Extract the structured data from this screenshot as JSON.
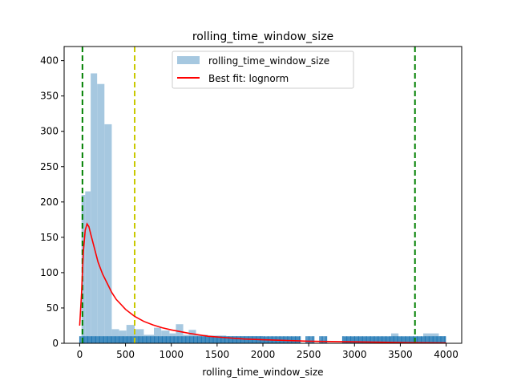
{
  "chart_data": {
    "type": "bar",
    "title": "rolling_time_window_size",
    "xlabel": "rolling_time_window_size",
    "ylabel": "",
    "xlim": [
      -170,
      4170
    ],
    "ylim": [
      0,
      420
    ],
    "xticks": [
      0,
      500,
      1000,
      1500,
      2000,
      2500,
      3000,
      3500,
      4000
    ],
    "yticks": [
      0,
      50,
      100,
      150,
      200,
      250,
      300,
      350,
      400
    ],
    "grid": false,
    "legend_position": "top-center",
    "histogram": {
      "name": "rolling_time_window_size",
      "color": "#a6c8e0",
      "bins": [
        {
          "x0": 20,
          "x1": 60,
          "value": 210
        },
        {
          "x0": 60,
          "x1": 120,
          "value": 215
        },
        {
          "x0": 120,
          "x1": 190,
          "value": 382
        },
        {
          "x0": 190,
          "x1": 270,
          "value": 367
        },
        {
          "x0": 270,
          "x1": 350,
          "value": 310
        },
        {
          "x0": 350,
          "x1": 430,
          "value": 20
        },
        {
          "x0": 430,
          "x1": 510,
          "value": 18
        },
        {
          "x0": 510,
          "x1": 600,
          "value": 26
        },
        {
          "x0": 600,
          "x1": 700,
          "value": 20
        },
        {
          "x0": 700,
          "x1": 810,
          "value": 12
        },
        {
          "x0": 810,
          "x1": 890,
          "value": 22
        },
        {
          "x0": 890,
          "x1": 980,
          "value": 18
        },
        {
          "x0": 980,
          "x1": 1050,
          "value": 14
        },
        {
          "x0": 1050,
          "x1": 1130,
          "value": 27
        },
        {
          "x0": 1130,
          "x1": 1190,
          "value": 12
        },
        {
          "x0": 1190,
          "x1": 1270,
          "value": 19
        },
        {
          "x0": 1270,
          "x1": 1400,
          "value": 12
        },
        {
          "x0": 1400,
          "x1": 1600,
          "value": 11
        },
        {
          "x0": 1600,
          "x1": 2000,
          "value": 10
        },
        {
          "x0": 2000,
          "x1": 2400,
          "value": 9
        },
        {
          "x0": 2880,
          "x1": 3400,
          "value": 9
        },
        {
          "x0": 3400,
          "x1": 3480,
          "value": 14
        },
        {
          "x0": 3480,
          "x1": 3750,
          "value": 9
        },
        {
          "x0": 3750,
          "x1": 3920,
          "value": 14
        },
        {
          "x0": 3920,
          "x1": 4000,
          "value": 10
        }
      ]
    },
    "fit_line": {
      "name": "Best fit: lognorm",
      "color": "#ff0000",
      "x": [
        0,
        20,
        40,
        60,
        80,
        100,
        120,
        160,
        200,
        250,
        300,
        350,
        400,
        450,
        500,
        600,
        700,
        800,
        900,
        1000,
        1200,
        1400,
        1600,
        1800,
        2000,
        2500,
        3000,
        3500,
        4000
      ],
      "y": [
        25,
        70,
        130,
        160,
        169,
        165,
        155,
        135,
        115,
        98,
        85,
        72,
        62,
        55,
        48,
        38,
        31,
        26,
        22,
        19,
        14,
        10,
        8,
        6,
        5,
        3,
        2,
        1,
        0.5
      ]
    },
    "vlines": [
      {
        "x": 30,
        "color": "#008000"
      },
      {
        "x": 600,
        "color": "#c9c900"
      },
      {
        "x": 3660,
        "color": "#008000"
      }
    ],
    "rug": {
      "color": "#1f77b4",
      "ranges": [
        [
          0,
          2410
        ],
        [
          2470,
          2560
        ],
        [
          2620,
          2700
        ],
        [
          2870,
          4000
        ]
      ]
    }
  }
}
